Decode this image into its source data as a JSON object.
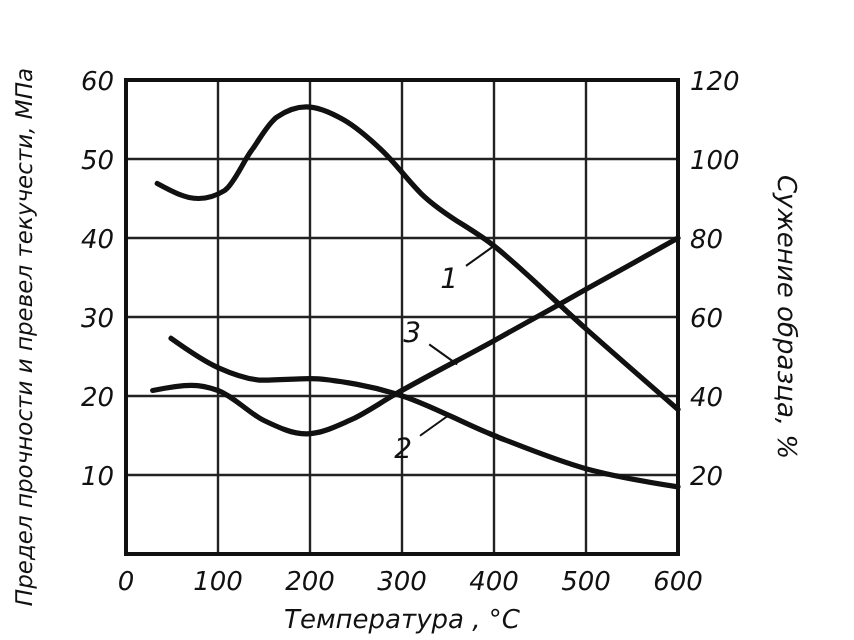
{
  "chart_data": {
    "type": "line",
    "xlabel": "Температура , °C",
    "ylabel": "Предел прочности и превел текучести, МПа",
    "y2label": "Сужение образца, %",
    "xlim": [
      0,
      600
    ],
    "xticks": [
      0,
      100,
      200,
      300,
      400,
      500,
      600
    ],
    "ylim": [
      0,
      60
    ],
    "yticks": [
      {
        "value": 0,
        "label": null
      },
      10,
      20,
      30,
      40,
      50,
      60
    ],
    "y2lim": [
      0,
      120
    ],
    "y2ticks": [
      20,
      40,
      60,
      80,
      100,
      120
    ],
    "grid": true,
    "marker": "none",
    "line_style": "solid",
    "series": [
      {
        "color": "#111111",
        "x": [
          34,
          79,
          107,
          136,
          164,
          196,
          236,
          279,
          321,
          400,
          500,
          600
        ],
        "values": [
          46.9,
          45,
          46,
          51,
          55.3,
          56.6,
          55,
          51,
          45.6,
          39,
          28.5,
          18.3
        ]
      },
      {
        "color": "#111111",
        "x": [
          49,
          100,
          150,
          200,
          250,
          293,
          400,
          500,
          600
        ],
        "values": [
          27.3,
          23.6,
          22,
          22.2,
          21.5,
          20.3,
          15,
          10.8,
          8.5
        ]
      },
      {
        "color": "#111111",
        "axis": "y2",
        "x": [
          29,
          71,
          100,
          150,
          196,
          243,
          293,
          400,
          500,
          600
        ],
        "values": [
          41.4,
          42.7,
          41.4,
          33.8,
          30.4,
          33.8,
          40.5,
          54,
          67,
          80
        ]
      }
    ],
    "annotations": [
      {
        "text": "1",
        "x": 400,
        "y": 39
      },
      {
        "text": "2",
        "x": 350,
        "y": 17.5
      },
      {
        "text": "3",
        "x": 360,
        "y": 24
      }
    ]
  }
}
